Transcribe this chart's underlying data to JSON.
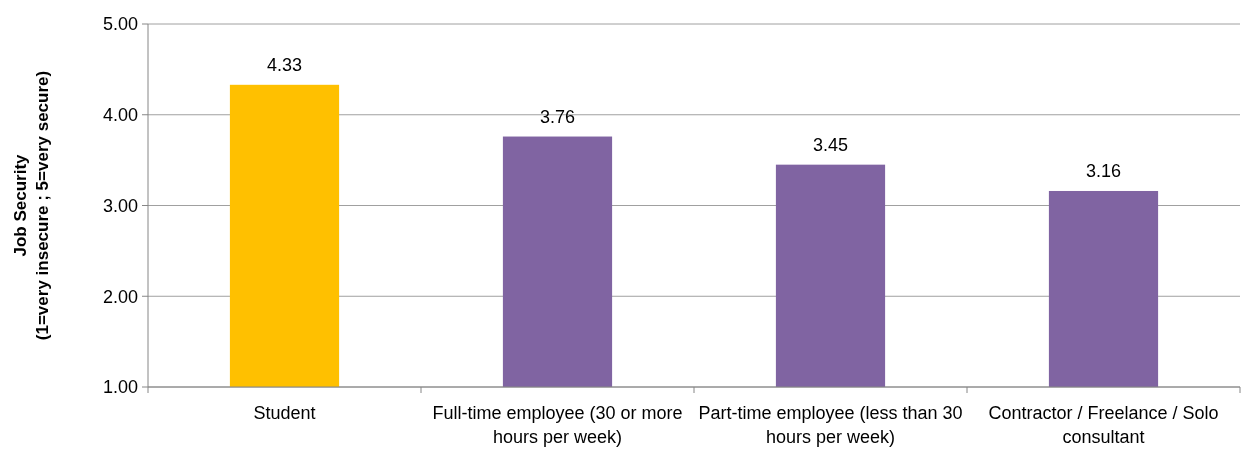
{
  "chart_data": {
    "type": "bar",
    "ylabel": "Job Security\n(1=very insecure ; 5=very secure)",
    "categories": [
      "Student",
      "Full-time employee (30 or more hours per week)",
      "Part-time employee (less than 30 hours per week)",
      "Contractor / Freelance / Solo consultant"
    ],
    "values": [
      4.33,
      3.76,
      3.45,
      3.16
    ],
    "colors": [
      "#ffc000",
      "#8064a2",
      "#8064a2",
      "#8064a2"
    ],
    "ylim": [
      1,
      5
    ],
    "yticks": [
      {
        "value": 1,
        "label": "1.00"
      },
      {
        "value": 2,
        "label": "2.00"
      },
      {
        "value": 3,
        "label": "3.00"
      },
      {
        "value": 4,
        "label": "4.00"
      },
      {
        "value": 5,
        "label": "5.00"
      }
    ],
    "grid": "y",
    "data_labels": true
  }
}
